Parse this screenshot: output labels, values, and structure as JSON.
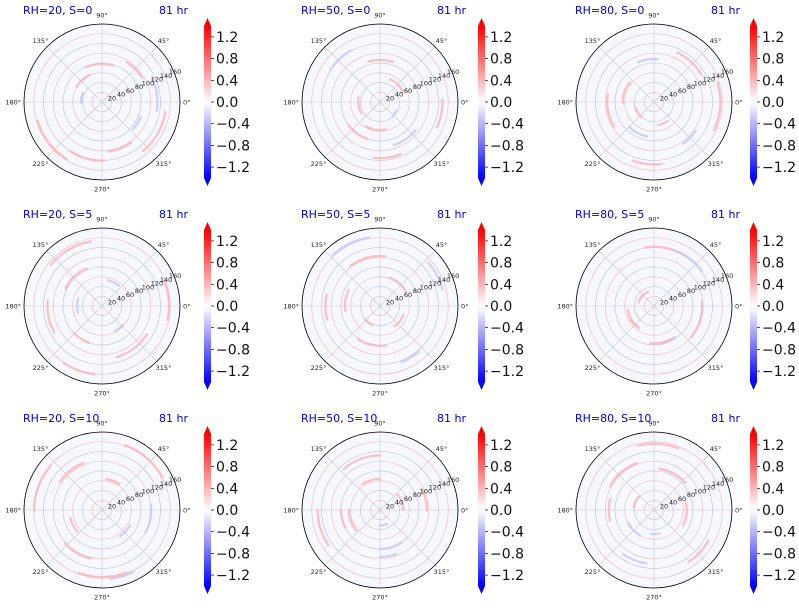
{
  "chart_data": {
    "type": "polar-contour-grid",
    "colormap": "bwr",
    "colorbar": {
      "ticks": [
        "1.2",
        "0.8",
        "0.4",
        "0.0",
        "−0.4",
        "−0.8",
        "−1.2"
      ],
      "vmin": -1.4,
      "vmax": 1.4,
      "extend": "both"
    },
    "angular_ticks": [
      "90°",
      "45°",
      "0°",
      "315°",
      "270°",
      "225°",
      "180°",
      "135°"
    ],
    "radial_ticks": [
      "20",
      "40",
      "60",
      "80",
      "100",
      "120",
      "140",
      "160"
    ],
    "time_label": "81 hr",
    "panels": [
      {
        "title": "RH=20, S=0"
      },
      {
        "title": "RH=50, S=0"
      },
      {
        "title": "RH=80, S=0"
      },
      {
        "title": "RH=20, S=5"
      },
      {
        "title": "RH=50, S=5"
      },
      {
        "title": "RH=80, S=5"
      },
      {
        "title": "RH=20, S=10"
      },
      {
        "title": "RH=50, S=10"
      },
      {
        "title": "RH=80, S=10"
      }
    ]
  }
}
